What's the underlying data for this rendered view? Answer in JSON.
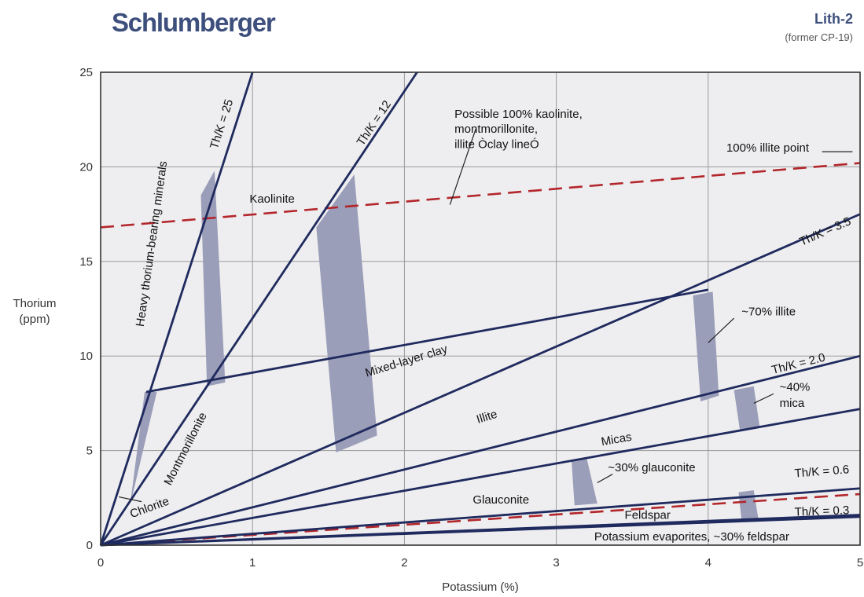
{
  "header": {
    "brand": "Schlumberger",
    "chart_code": "Lith-2",
    "chart_subcode": "(former CP-19)"
  },
  "colors": {
    "brand": "#3d4f7c",
    "line": "#1f2a5e",
    "dash": "#b3262b",
    "band": "#9b9eb9",
    "grid": "#9a9a9a",
    "background": "#eeeef0"
  },
  "chart_data": {
    "type": "line",
    "xlabel": "Potassium (%)",
    "ylabel": [
      "Thorium",
      "(ppm)"
    ],
    "xlim": [
      0,
      5
    ],
    "ylim": [
      0,
      25
    ],
    "x_ticks": [
      "0",
      "1",
      "2",
      "3",
      "4",
      "5"
    ],
    "y_ticks": [
      "0",
      "5",
      "10",
      "15",
      "20",
      "25"
    ],
    "grid": true,
    "ratio_lines": [
      {
        "name": "Th/K = 25",
        "ratio": 25,
        "label_k": 0.82,
        "label_th": 22.2
      },
      {
        "name": "Th/K = 12",
        "ratio": 12,
        "label_k": 1.82,
        "label_th": 22.2
      },
      {
        "name": "Th/K = 3.5",
        "ratio": 3.5,
        "label_k": 4.78,
        "label_th": 16.4
      },
      {
        "name": "Th/K = 2.0",
        "ratio": 2.0,
        "label_k": 4.6,
        "label_th": 9.4
      },
      {
        "name": "Th/K = 0.6",
        "ratio": 0.6,
        "label_k": 4.75,
        "label_th": 3.7
      },
      {
        "name": "Th/K = 0.3",
        "ratio": 0.3,
        "label_k": 4.75,
        "label_th": 1.6
      }
    ],
    "boundary_lines": [
      {
        "k": [
          0.3,
          4.0
        ],
        "th": [
          8.1,
          13.5
        ]
      },
      {
        "k": [
          0.0,
          5.0
        ],
        "th": [
          0.0,
          7.2
        ]
      },
      {
        "k": [
          0.0,
          5.0
        ],
        "th": [
          0.0,
          1.6
        ]
      }
    ],
    "dashed_lines": [
      {
        "k": [
          0.0,
          5.0
        ],
        "th": [
          16.8,
          20.2
        ]
      },
      {
        "k": [
          0.0,
          5.0
        ],
        "th": [
          0.0,
          2.7
        ]
      }
    ],
    "bands": [
      {
        "k": [
          0.2,
          0.37,
          0.29,
          0.2
        ],
        "th": [
          2.3,
          8.1,
          8.1,
          2.5
        ]
      },
      {
        "k": [
          0.66,
          0.75,
          0.82,
          0.7
        ],
        "th": [
          18.5,
          19.8,
          8.6,
          8.4
        ]
      },
      {
        "k": [
          1.42,
          1.67,
          1.82,
          1.55
        ],
        "th": [
          16.8,
          19.6,
          5.8,
          4.9
        ]
      },
      {
        "k": [
          3.9,
          4.03,
          4.07,
          3.95
        ],
        "th": [
          13.2,
          13.4,
          7.9,
          7.6
        ]
      },
      {
        "k": [
          4.17,
          4.3,
          4.34,
          4.21
        ],
        "th": [
          8.2,
          8.4,
          6.2,
          6.0
        ]
      },
      {
        "k": [
          3.1,
          3.2,
          3.27,
          3.12
        ],
        "th": [
          4.5,
          4.6,
          2.2,
          2.1
        ]
      },
      {
        "k": [
          4.2,
          4.3,
          4.33,
          4.22
        ],
        "th": [
          2.8,
          2.9,
          1.4,
          1.3
        ]
      }
    ],
    "annotations": [
      {
        "text": "Possible 100% kaolinite,",
        "k": 2.33,
        "th": 22.6
      },
      {
        "text": "montmorillonite,",
        "k": 2.33,
        "th": 21.8
      },
      {
        "text": "illite Òclay lineÓ",
        "k": 2.33,
        "th": 21.0
      },
      {
        "text": "100% illite point",
        "k": 4.12,
        "th": 20.8
      },
      {
        "text": "Kaolinite",
        "k": 0.98,
        "th": 18.1
      },
      {
        "text": "Mixed-layer clay",
        "k": 2.02,
        "th": 9.55,
        "rotate": -17
      },
      {
        "text": "Illite",
        "k": 2.55,
        "th": 6.6,
        "rotate": -17
      },
      {
        "text": "Micas",
        "k": 3.4,
        "th": 5.4,
        "rotate": -10
      },
      {
        "text": "Glauconite",
        "k": 2.45,
        "th": 2.2
      },
      {
        "text": "Feldspar",
        "k": 3.45,
        "th": 1.4
      },
      {
        "text": "~70% illite",
        "k": 4.22,
        "th": 12.15
      },
      {
        "text": "~40%",
        "k": 4.47,
        "th": 8.15
      },
      {
        "text": "mica",
        "k": 4.47,
        "th": 7.3
      },
      {
        "text": "~30% glauconite",
        "k": 3.34,
        "th": 3.9
      },
      {
        "text": "Potassium evaporites, ~30% feldspar",
        "k": 3.25,
        "th": 0.25
      },
      {
        "text": "Montmorillonite",
        "k": 0.58,
        "th": 5.0,
        "rotate": -63
      },
      {
        "text": "Chlorite",
        "k": 0.33,
        "th": 1.8,
        "rotate": -20
      },
      {
        "text": "Heavy thorium-bearing minerals",
        "k": 0.36,
        "th": 15.9,
        "rotate": -82
      }
    ],
    "leaders": [
      {
        "k": [
          2.3,
          2.47
        ],
        "th": [
          18.0,
          22.0
        ]
      },
      {
        "k": [
          4.75,
          4.95
        ],
        "th": [
          20.8,
          20.8
        ]
      },
      {
        "k": [
          4.0,
          4.17
        ],
        "th": [
          10.7,
          12.0
        ]
      },
      {
        "k": [
          4.3,
          4.43
        ],
        "th": [
          7.5,
          8.0
        ]
      },
      {
        "k": [
          3.27,
          3.37
        ],
        "th": [
          3.3,
          3.75
        ]
      },
      {
        "k": [
          0.12,
          0.27
        ],
        "th": [
          2.55,
          2.3
        ]
      }
    ]
  }
}
